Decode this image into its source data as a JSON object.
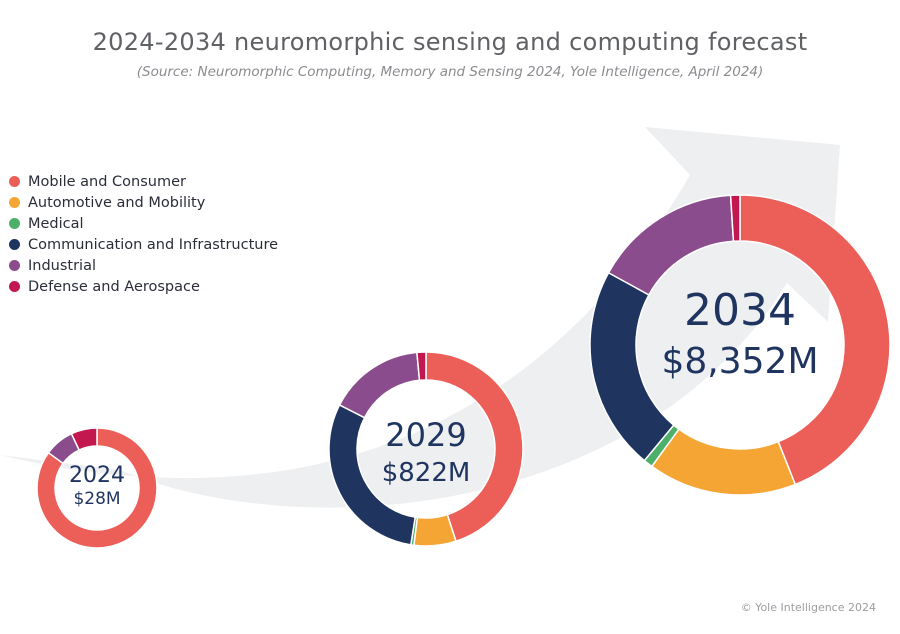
{
  "title": "2024-2034 neuromorphic sensing and computing forecast",
  "subtitle": "(Source: Neuromorphic Computing, Memory and Sensing 2024, Yole Intelligence, April 2024)",
  "footer": "© Yole Intelligence 2024",
  "legend": [
    {
      "label": "Mobile and Consumer",
      "color": "#ec5f59"
    },
    {
      "label": "Automotive and Mobility",
      "color": "#f5a533"
    },
    {
      "label": "Medical",
      "color": "#4caf6a"
    },
    {
      "label": "Communication and Infrastructure",
      "color": "#1f3560"
    },
    {
      "label": "Industrial",
      "color": "#8a4c8c"
    },
    {
      "label": "Defense and Aerospace",
      "color": "#c2184f"
    }
  ],
  "chart_data": {
    "type": "pie",
    "subtype": "donut",
    "segments": [
      "Mobile and Consumer",
      "Automotive and Mobility",
      "Medical",
      "Communication and Infrastructure",
      "Industrial",
      "Defense and Aerospace"
    ],
    "charts": [
      {
        "year": "2024",
        "total_label": "$28M",
        "total": 28,
        "shares": [
          0.85,
          0.0,
          0.0,
          0.0,
          0.08,
          0.07
        ]
      },
      {
        "year": "2029",
        "total_label": "$822M",
        "total": 822,
        "shares": [
          0.45,
          0.07,
          0.005,
          0.3,
          0.16,
          0.015
        ]
      },
      {
        "year": "2034",
        "total_label": "$8,352M",
        "total": 8352,
        "shares": [
          0.44,
          0.16,
          0.01,
          0.22,
          0.16,
          0.01
        ]
      }
    ]
  }
}
